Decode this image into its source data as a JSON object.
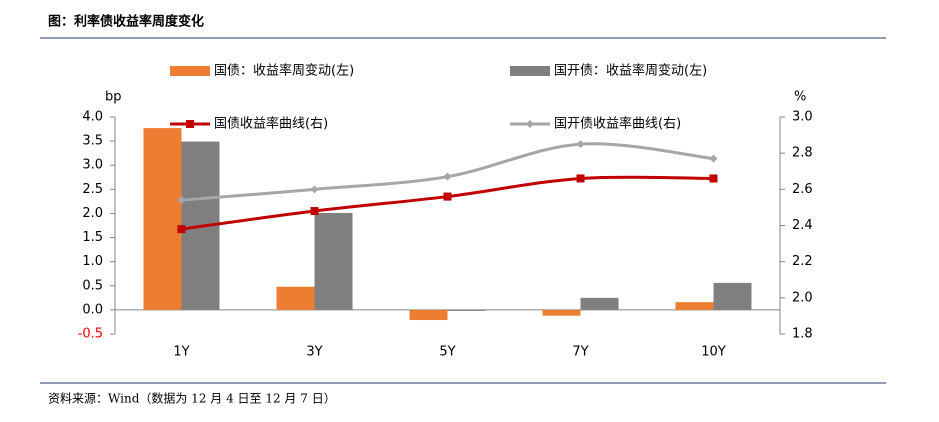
{
  "chart_data": {
    "type": "combo",
    "title": "图：利率债收益率周度变化",
    "source": "资料来源：Wind（数据为 12 月 4 日至 12 月 7 日）",
    "ylabel": "bp",
    "y2label": "%",
    "categories": [
      "1Y",
      "3Y",
      "5Y",
      "7Y",
      "10Y"
    ],
    "series": [
      {
        "name": "国债：收益率周变动(左)",
        "type": "bar",
        "color": "#ed7d31",
        "values": [
          3.77,
          0.48,
          -0.21,
          -0.12,
          0.16
        ]
      },
      {
        "name": "国开债：收益率周变动(左)",
        "type": "bar",
        "color": "#7f7f7f",
        "values": [
          3.49,
          2.01,
          -0.01,
          0.25,
          0.56
        ]
      },
      {
        "name": "国债收益率曲线(右)",
        "type": "line",
        "axis": "y2",
        "marker": "square",
        "color": "#c00000",
        "values": [
          2.38,
          2.48,
          2.56,
          2.66,
          2.66
        ]
      },
      {
        "name": "国开债收益率曲线(右)",
        "type": "line",
        "axis": "y2",
        "marker": "diamond",
        "color": "#a6a6a6",
        "values": [
          2.54,
          2.6,
          2.67,
          2.85,
          2.77
        ]
      }
    ],
    "ylim": [
      -0.5,
      4.0
    ],
    "yticks": [
      {
        "value": -0.5,
        "label": "-0.5"
      },
      {
        "value": 0,
        "label": "0.0"
      },
      {
        "value": 0.5,
        "label": "0.5"
      },
      {
        "value": 1,
        "label": "1.0"
      },
      {
        "value": 1.5,
        "label": "1.5"
      },
      {
        "value": 2,
        "label": "2.0"
      },
      {
        "value": 2.5,
        "label": "2.5"
      },
      {
        "value": 3,
        "label": "3.0"
      },
      {
        "value": 3.5,
        "label": "3.5"
      },
      {
        "value": 4,
        "label": "4.0"
      }
    ],
    "y2lim": [
      1.8,
      3.0
    ],
    "y2ticks": [
      {
        "value": 1.8,
        "label": "1.8"
      },
      {
        "value": 2,
        "label": "2.0"
      },
      {
        "value": 2.2,
        "label": "2.2"
      },
      {
        "value": 2.4,
        "label": "2.4"
      },
      {
        "value": 2.6,
        "label": "2.6"
      },
      {
        "value": 2.8,
        "label": "2.8"
      },
      {
        "value": 3,
        "label": "3.0"
      }
    ],
    "negative_tick_color": "#ff0000",
    "smooth": true
  }
}
